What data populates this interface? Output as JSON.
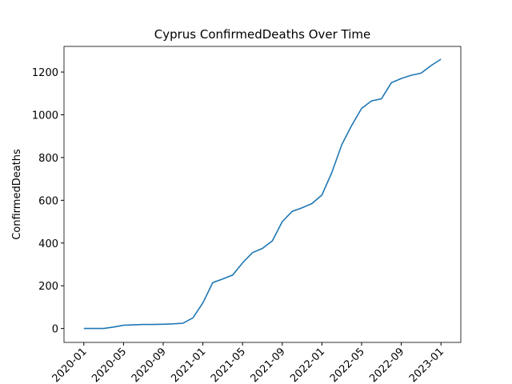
{
  "chart_data": {
    "type": "line",
    "title": "Cyprus  ConfirmedDeaths Over Time",
    "y_label": "ConfirmedDeaths",
    "x": [
      "2020-01",
      "2020-02",
      "2020-03",
      "2020-04",
      "2020-05",
      "2020-06",
      "2020-07",
      "2020-08",
      "2020-09",
      "2020-10",
      "2020-11",
      "2020-12",
      "2021-01",
      "2021-02",
      "2021-03",
      "2021-04",
      "2021-05",
      "2021-06",
      "2021-07",
      "2021-08",
      "2021-09",
      "2021-10",
      "2021-11",
      "2021-12",
      "2022-01",
      "2022-02",
      "2022-03",
      "2022-04",
      "2022-05",
      "2022-06",
      "2022-07",
      "2022-08",
      "2022-09",
      "2022-10",
      "2022-11",
      "2022-12",
      "2023-01"
    ],
    "series": [
      {
        "name": "ConfirmedDeaths",
        "color": "#1f77b4",
        "values": [
          0,
          0,
          0,
          7,
          15,
          17,
          19,
          19,
          20,
          22,
          25,
          50,
          120,
          215,
          232,
          250,
          307,
          355,
          375,
          410,
          500,
          548,
          565,
          585,
          625,
          730,
          860,
          950,
          1030,
          1065,
          1075,
          1150,
          1170,
          1185,
          1195,
          1230,
          1260
        ]
      }
    ],
    "xlim": [
      "2019-11",
      "2023-03"
    ],
    "xticks": [
      "2020-01",
      "2020-05",
      "2020-09",
      "2021-01",
      "2021-05",
      "2021-09",
      "2022-01",
      "2022-05",
      "2022-09",
      "2023-01"
    ],
    "ylim": [
      -65,
      1320
    ],
    "yticks": [
      0,
      200,
      400,
      600,
      800,
      1000,
      1200
    ]
  }
}
